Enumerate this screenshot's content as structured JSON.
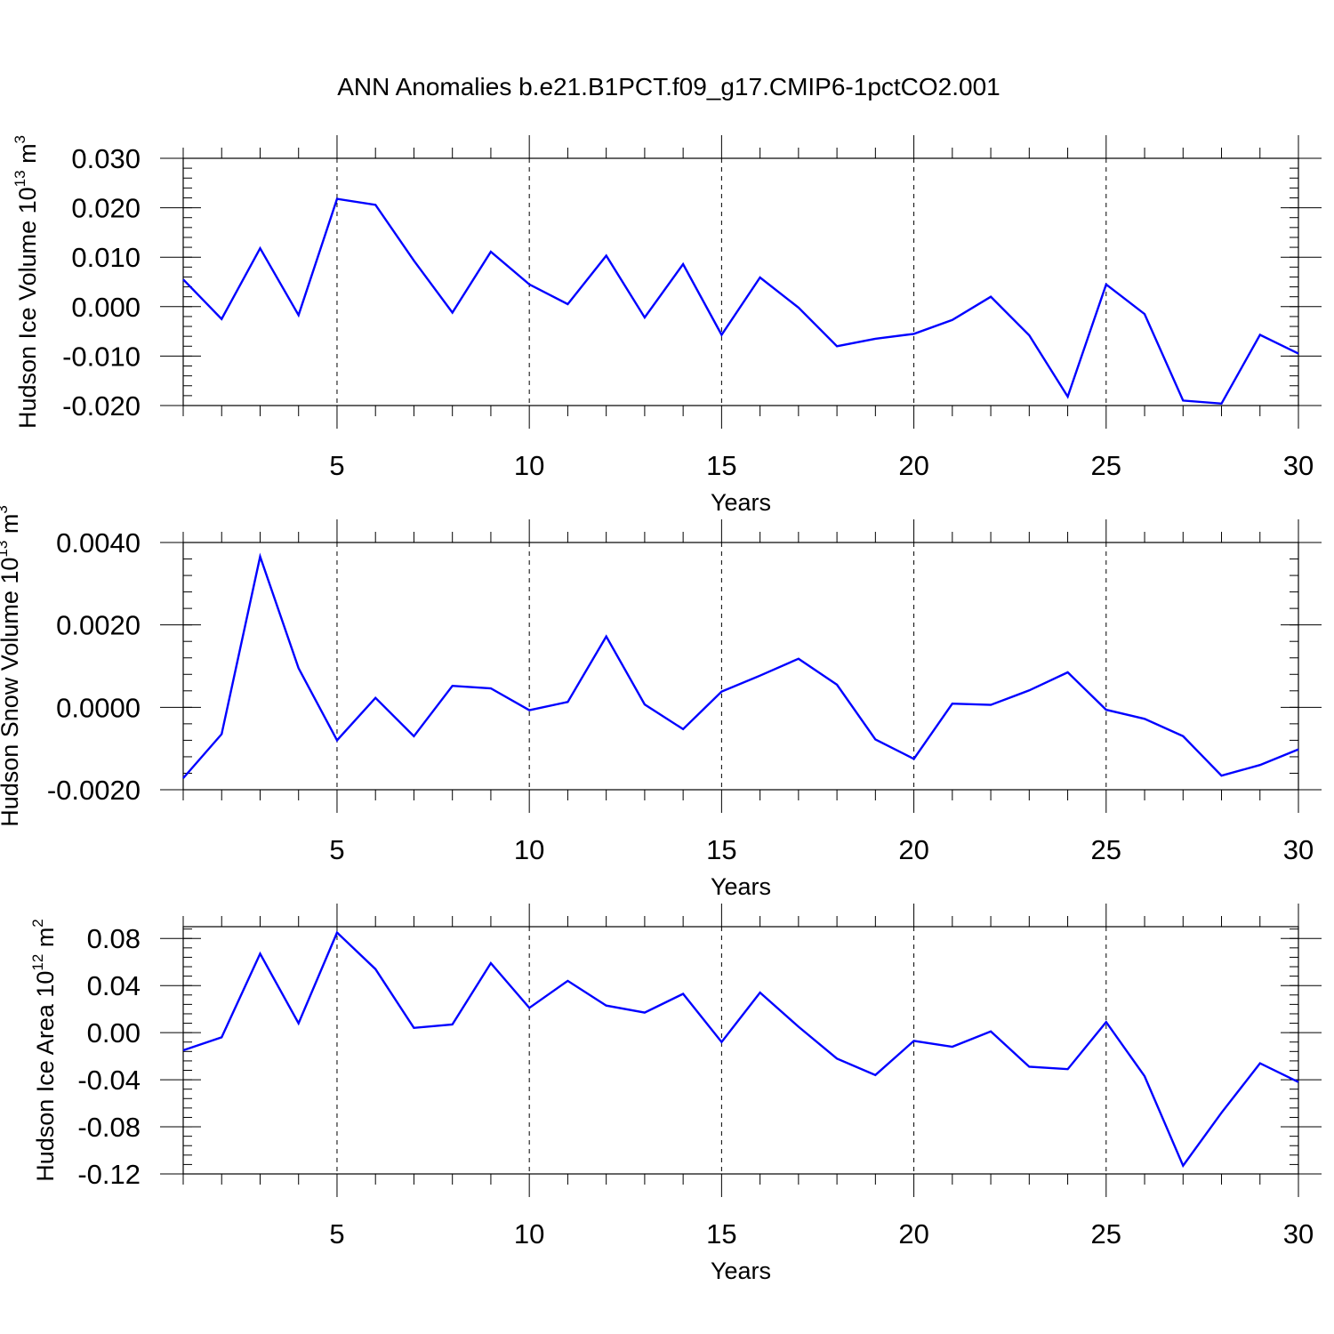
{
  "figure_title": "ANN Anomalies b.e21.B1PCT.f09_g17.CMIP6-1pctCO2.001",
  "line_color": "#0000ff",
  "chart_data": [
    {
      "type": "line",
      "ylabel": "Hudson Ice Volume",
      "yunit": {
        "base": "10",
        "exp": "13",
        "unit": "m",
        "unit_exp": "3"
      },
      "xlabel": "Years",
      "xlim": [
        1,
        30
      ],
      "ylim": [
        -0.02,
        0.03
      ],
      "xticks": [
        5,
        10,
        15,
        20,
        25,
        30
      ],
      "xtick_labels": [
        "5",
        "10",
        "15",
        "20",
        "25",
        "30"
      ],
      "yticks": [
        -0.02,
        -0.01,
        0.0,
        0.01,
        0.02,
        0.03
      ],
      "ytick_labels": [
        "-0.020",
        "-0.010",
        "0.000",
        "0.010",
        "0.020",
        "0.030"
      ],
      "y_minor_step": 0.002,
      "x": [
        1,
        2,
        3,
        4,
        5,
        6,
        7,
        8,
        9,
        10,
        11,
        12,
        13,
        14,
        15,
        16,
        17,
        18,
        19,
        20,
        21,
        22,
        23,
        24,
        25,
        26,
        27,
        28,
        29,
        30
      ],
      "values": [
        0.0055,
        -0.0025,
        0.0118,
        -0.0017,
        0.0218,
        0.0206,
        0.0093,
        -0.0012,
        0.0111,
        0.0045,
        0.0005,
        0.0103,
        -0.0022,
        0.0086,
        -0.0057,
        0.0059,
        -0.0002,
        -0.008,
        -0.0065,
        -0.0055,
        -0.0027,
        0.002,
        -0.0058,
        -0.0182,
        0.0045,
        -0.0015,
        -0.019,
        -0.0196,
        -0.0057,
        -0.0095
      ],
      "grid": "vertical dashed at major x ticks"
    },
    {
      "type": "line",
      "ylabel": "Hudson Snow Volume",
      "yunit": {
        "base": "10",
        "exp": "13",
        "unit": "m",
        "unit_exp": "3"
      },
      "xlabel": "Years",
      "xlim": [
        1,
        30
      ],
      "ylim": [
        -0.002,
        0.004
      ],
      "xticks": [
        5,
        10,
        15,
        20,
        25,
        30
      ],
      "xtick_labels": [
        "5",
        "10",
        "15",
        "20",
        "25",
        "30"
      ],
      "yticks": [
        -0.002,
        0.0,
        0.002,
        0.004
      ],
      "ytick_labels": [
        "-0.0020",
        "0.0000",
        "0.0020",
        "0.0040"
      ],
      "y_minor_step": 0.0004,
      "x": [
        1,
        2,
        3,
        4,
        5,
        6,
        7,
        8,
        9,
        10,
        11,
        12,
        13,
        14,
        15,
        16,
        17,
        18,
        19,
        20,
        21,
        22,
        23,
        24,
        25,
        26,
        27,
        28,
        29,
        30
      ],
      "values": [
        -0.00172,
        -0.00065,
        0.00366,
        0.00095,
        -0.0008,
        0.00023,
        -0.0007,
        0.00052,
        0.00046,
        -7e-05,
        0.00013,
        0.00172,
        7e-05,
        -0.00053,
        0.00038,
        0.00077,
        0.00118,
        0.00055,
        -0.00078,
        -0.00125,
        9e-05,
        6e-05,
        0.00041,
        0.00085,
        -6e-05,
        -0.00028,
        -0.0007,
        -0.00166,
        -0.0014,
        -0.00102
      ],
      "grid": "vertical dashed at major x ticks"
    },
    {
      "type": "line",
      "ylabel": "Hudson Ice Area",
      "yunit": {
        "base": "10",
        "exp": "12",
        "unit": "m",
        "unit_exp": "2"
      },
      "xlabel": "Years",
      "xlim": [
        1,
        30
      ],
      "ylim": [
        -0.12,
        0.09
      ],
      "xticks": [
        5,
        10,
        15,
        20,
        25,
        30
      ],
      "xtick_labels": [
        "5",
        "10",
        "15",
        "20",
        "25",
        "30"
      ],
      "yticks": [
        -0.12,
        -0.08,
        -0.04,
        0.0,
        0.04,
        0.08
      ],
      "ytick_labels": [
        "-0.12",
        "-0.08",
        "-0.04",
        "0.00",
        "0.04",
        "0.08"
      ],
      "y_minor_step": 0.008,
      "x": [
        1,
        2,
        3,
        4,
        5,
        6,
        7,
        8,
        9,
        10,
        11,
        12,
        13,
        14,
        15,
        16,
        17,
        18,
        19,
        20,
        21,
        22,
        23,
        24,
        25,
        26,
        27,
        28,
        29,
        30
      ],
      "values": [
        -0.015,
        -0.004,
        0.067,
        0.008,
        0.085,
        0.054,
        0.004,
        0.007,
        0.059,
        0.021,
        0.044,
        0.023,
        0.017,
        0.033,
        -0.008,
        0.034,
        0.005,
        -0.022,
        -0.036,
        -0.007,
        -0.012,
        0.001,
        -0.029,
        -0.031,
        0.009,
        -0.037,
        -0.113,
        -0.068,
        -0.026,
        -0.042
      ],
      "grid": "vertical dashed at major x ticks"
    }
  ]
}
